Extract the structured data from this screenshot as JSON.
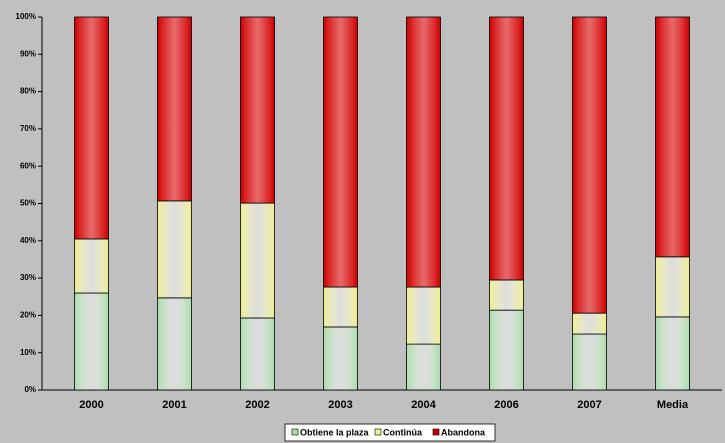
{
  "chart_data": {
    "type": "stacked_bar",
    "categories": [
      "2000",
      "2001",
      "2002",
      "2003",
      "2004",
      "2006",
      "2007",
      "Media"
    ],
    "series": [
      {
        "name": "Obtiene la plaza",
        "color": "#a8dca8",
        "values": [
          26.0,
          24.7,
          19.3,
          16.9,
          12.3,
          21.4,
          15.0,
          19.6
        ]
      },
      {
        "name": "Continúa",
        "color": "#eeee90",
        "values": [
          14.5,
          26.0,
          30.8,
          10.7,
          15.3,
          8.1,
          5.6,
          16.1
        ]
      },
      {
        "name": "Abandona",
        "color": "#cc0000",
        "values": [
          59.5,
          49.3,
          49.9,
          72.4,
          72.4,
          70.5,
          79.4,
          64.3
        ]
      }
    ],
    "ylim": [
      0,
      100
    ],
    "yticks": [
      {
        "value": 0,
        "label": "0%"
      },
      {
        "value": 10,
        "label": "10%"
      },
      {
        "value": 20,
        "label": "20%"
      },
      {
        "value": 30,
        "label": "30%"
      },
      {
        "value": 40,
        "label": "40%"
      },
      {
        "value": 50,
        "label": "50%"
      },
      {
        "value": 60,
        "label": "60%"
      },
      {
        "value": 70,
        "label": "70%"
      },
      {
        "value": 80,
        "label": "80%"
      },
      {
        "value": 90,
        "label": "90%"
      },
      {
        "value": 100,
        "label": "100%"
      }
    ],
    "grid": false,
    "legend": "bottom"
  }
}
